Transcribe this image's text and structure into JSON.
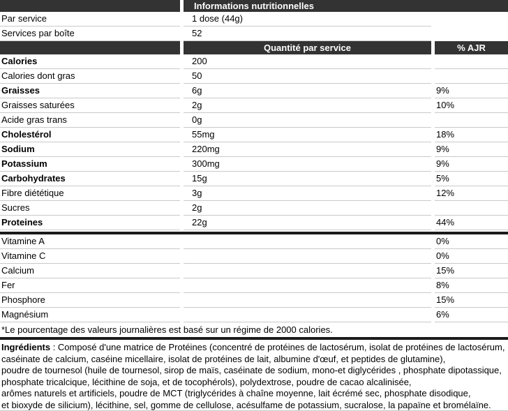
{
  "colors": {
    "header_bar": "#333333",
    "thick_rule": "#1b1b1b",
    "row_line": "#c9c9c9"
  },
  "table": {
    "title": "Informations nutritionnelles",
    "serving_rows": [
      {
        "label": "Par service",
        "value": "1 dose (44g)"
      },
      {
        "label": "Services par boîte",
        "value": "52"
      }
    ],
    "column_headers": {
      "amount": "Quantité par service",
      "dv": "% AJR"
    },
    "nutrient_rows": [
      {
        "label": "Calories",
        "amount": "200",
        "dv": ""
      },
      {
        "label": "Calories dont gras",
        "amount": "50",
        "dv": ""
      },
      {
        "label": "Graisses",
        "amount": "6g",
        "dv": "9%"
      },
      {
        "label": "Graisses saturées",
        "amount": "2g",
        "dv": "10%"
      },
      {
        "label": "Acide gras trans",
        "amount": "0g",
        "dv": ""
      },
      {
        "label": "Cholestérol",
        "amount": "55mg",
        "dv": "18%"
      },
      {
        "label": "Sodium",
        "amount": "220mg",
        "dv": "9%"
      },
      {
        "label": "Potassium",
        "amount": "300mg",
        "dv": "9%"
      },
      {
        "label": "Carbohydrates",
        "amount": "15g",
        "dv": "5%"
      },
      {
        "label": "Fibre diététique",
        "amount": "3g",
        "dv": "12%"
      },
      {
        "label": "Sucres",
        "amount": "2g",
        "dv": ""
      },
      {
        "label": "Proteines",
        "amount": "22g",
        "dv": "44%"
      }
    ],
    "micronutrient_rows": [
      {
        "label": "Vitamine A",
        "dv": "0%"
      },
      {
        "label": "Vitamine C",
        "dv": "0%"
      },
      {
        "label": "Calcium",
        "dv": "15%"
      },
      {
        "label": "Fer",
        "dv": "8%"
      },
      {
        "label": "Phosphore",
        "dv": "15%"
      },
      {
        "label": "Magnésium",
        "dv": "6%"
      }
    ],
    "footnote": "*Le pourcentage des valeurs journalières est basé sur un régime de 2000 calories."
  },
  "ingredients": {
    "heading": "Ingrédients",
    "lines": [
      " : Composé d'une matrice de Protéines (concentré de protéines de lactosérum, isolat de protéines de lactosérum,",
      "caséinate de calcium, caséine micellaire, isolat de protéines de lait, albumine d'œuf, et peptides de glutamine),",
      "poudre de tournesol (huile de tournesol, sirop de maïs, caséinate de sodium, mono-et diglycérides , phosphate dipotassique,",
      "phosphate tricalcique, lécithine de soja, et de tocophérols), polydextrose, poudre de cacao alcalinisée,",
      "arômes naturels et artificiels, poudre de MCT (triglycérides à chaîne moyenne, lait écrémé sec, phosphate disodique,",
      "et bioxyde de silicium), lécithine, sel, gomme de cellulose, acésulfame de potassium, sucralose, la papaïne et bromélaïne."
    ]
  }
}
